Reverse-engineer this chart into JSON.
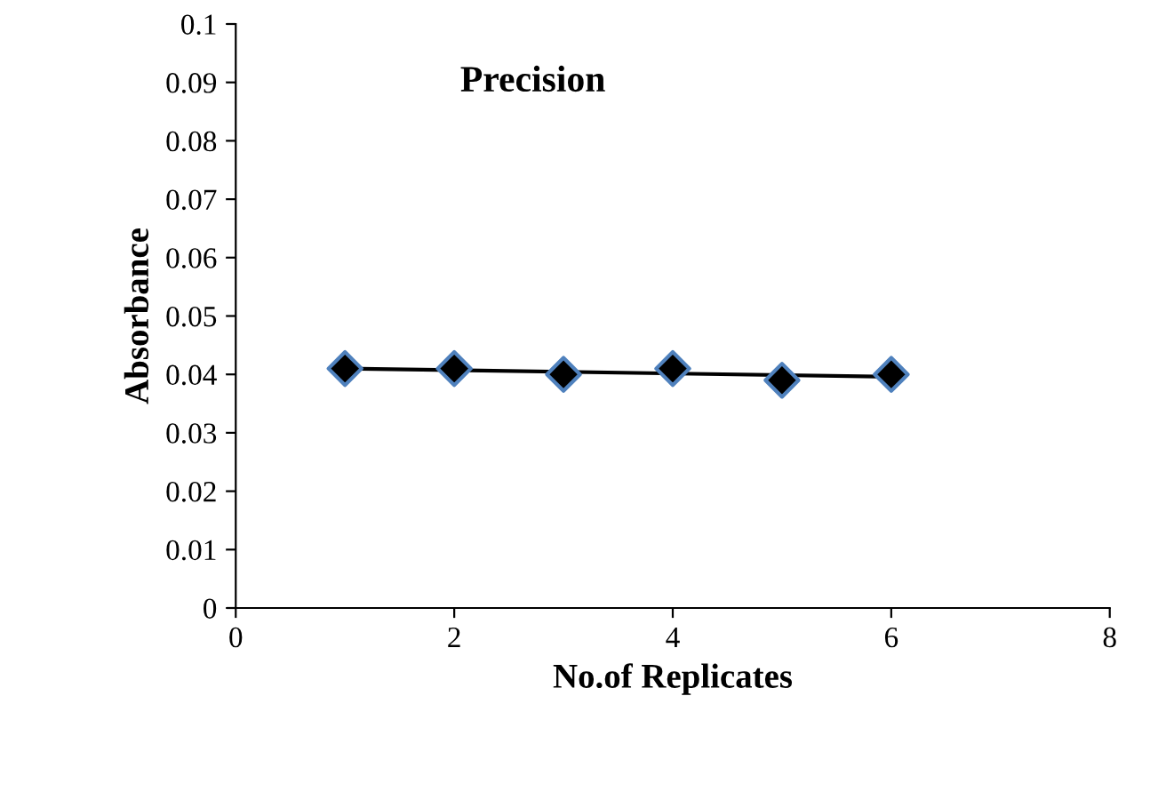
{
  "chart_data": {
    "type": "scatter",
    "title": "Precision",
    "xlabel": "No.of Replicates",
    "ylabel": "Absorbance",
    "x": [
      1,
      2,
      3,
      4,
      5,
      6
    ],
    "series": [
      {
        "color": "#000000",
        "marker": "diamond",
        "values": [
          0.041,
          0.041,
          0.04,
          0.041,
          0.039,
          0.04
        ]
      },
      {
        "type": "line",
        "color": "#000000",
        "x": [
          1,
          6
        ],
        "values": [
          0.041,
          0.0396
        ]
      }
    ],
    "xlim": [
      0,
      8
    ],
    "xticks": [
      0,
      2,
      4,
      6,
      8
    ],
    "ylim": [
      0,
      0.1
    ],
    "yticks": [
      0,
      0.01,
      0.02,
      0.03,
      0.04,
      0.05,
      0.06,
      0.07,
      0.08,
      0.09,
      0.1
    ],
    "grid": false,
    "legend": false
  }
}
